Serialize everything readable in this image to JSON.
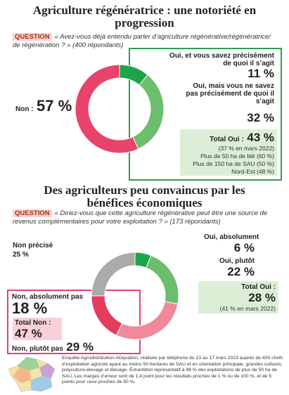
{
  "chart_data": [
    {
      "type": "pie",
      "donut": true,
      "title": "Agriculture régénératrice : une notoriété en progression",
      "question_label": "QUESTION",
      "question": "« Avez-vous déjà entendu parler d’agriculture régénérative/régénératrice/ de régénération ? » (400 répondants)",
      "categories": [
        "Oui, et vous savez précisément de quoi il s’agit",
        "Oui, mais vous ne savez pas précisément de quoi il s’agit",
        "Non :"
      ],
      "values": [
        11,
        32,
        57
      ],
      "value_labels": [
        "11 %",
        "32 %",
        "57 %"
      ],
      "colors": [
        "#1fa34a",
        "#6cbd6c",
        "#e8436a"
      ],
      "total": {
        "label": "Total Oui :",
        "value_label": "43 %",
        "notes": [
          "(37 % en mars 2022)",
          "Plus de 50 ha de blé (60 %)",
          "Plus de 150 ha de SAU (50 %)",
          "Nord-Est (48 %)"
        ]
      }
    },
    {
      "type": "pie",
      "donut": true,
      "title": "Des agriculteurs peu convaincus par les bénéfices économiques",
      "question_label": "QUESTION",
      "question": "« Diriez-vous que cette agriculture régénérative peut être une source de revenus complémentaires pour votre exploitation ? » (173 répondants)",
      "categories": [
        "Oui, absolument",
        "Oui, plutôt",
        "Non, plutôt pas",
        "Non, absolument pas",
        "Non précisé"
      ],
      "values": [
        6,
        22,
        29,
        18,
        25
      ],
      "value_labels": [
        "6 %",
        "22 %",
        "29 %",
        "18 %",
        "25 %"
      ],
      "colors": [
        "#1fa34a",
        "#6cbd6c",
        "#f08a9a",
        "#e23d5f",
        "#ababab"
      ],
      "total": {
        "label": "Total Oui :",
        "value_label": "28 %",
        "notes": [
          "(41 % en mars 2022)"
        ]
      },
      "total_no": {
        "label": "Total Non :",
        "value_label": "47 %"
      }
    }
  ],
  "footnote": "Enquête Agrodistribution-ADquation, réalisée par téléphone du 13 au 17 mars 2023 auprès de 400 chefs d’exploitation agricole ayant au moins 50 hectares de SAU et en orientation principale, grandes cultures, polyculture-élevage et élevage. Échantillon représentatif à 98 % des exploitations de plus de 50 ha de SAU. Les marges d’erreur sont de 1,4 point pour les résultats proches de 1 % ou de 100 %, et de 5 points pour ceux proches de 50 %."
}
